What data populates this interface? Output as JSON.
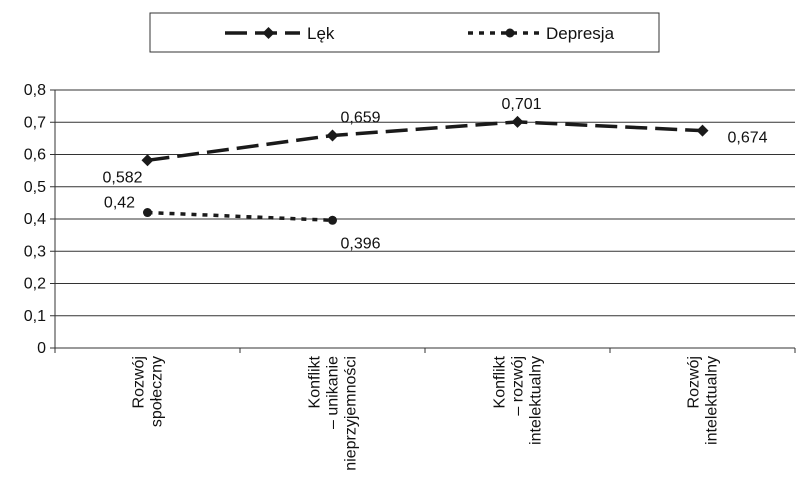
{
  "chart_data": {
    "type": "line",
    "categories": [
      [
        "Rozwój",
        "społeczny"
      ],
      [
        "Konflikt",
        "– unikanie",
        "nieprzyjemności"
      ],
      [
        "Konflikt",
        "– rozwój",
        "intelektualny"
      ],
      [
        "Rozwój",
        "intelektualny"
      ]
    ],
    "ylim": [
      0,
      0.8
    ],
    "yticks": [
      0,
      0.1,
      0.2,
      0.3,
      0.4,
      0.5,
      0.6,
      0.7,
      0.8
    ],
    "ytick_labels": [
      "0",
      "0,1",
      "0,2",
      "0,3",
      "0,4",
      "0,5",
      "0,6",
      "0,7",
      "0,8"
    ],
    "grid": true,
    "legend_position": "top",
    "series": [
      {
        "name": "Lęk",
        "values": [
          0.582,
          0.659,
          0.701,
          0.674
        ],
        "labels": [
          "0,582",
          "0,659",
          "0,701",
          "0,674"
        ],
        "line_style": "dashed",
        "marker": "diamond",
        "color": "#1a1a1a"
      },
      {
        "name": "Depresja",
        "values": [
          0.42,
          0.396,
          null,
          null
        ],
        "labels": [
          "0,42",
          "0,396",
          null,
          null
        ],
        "line_style": "dotted",
        "marker": "circle",
        "color": "#1a1a1a"
      }
    ]
  }
}
